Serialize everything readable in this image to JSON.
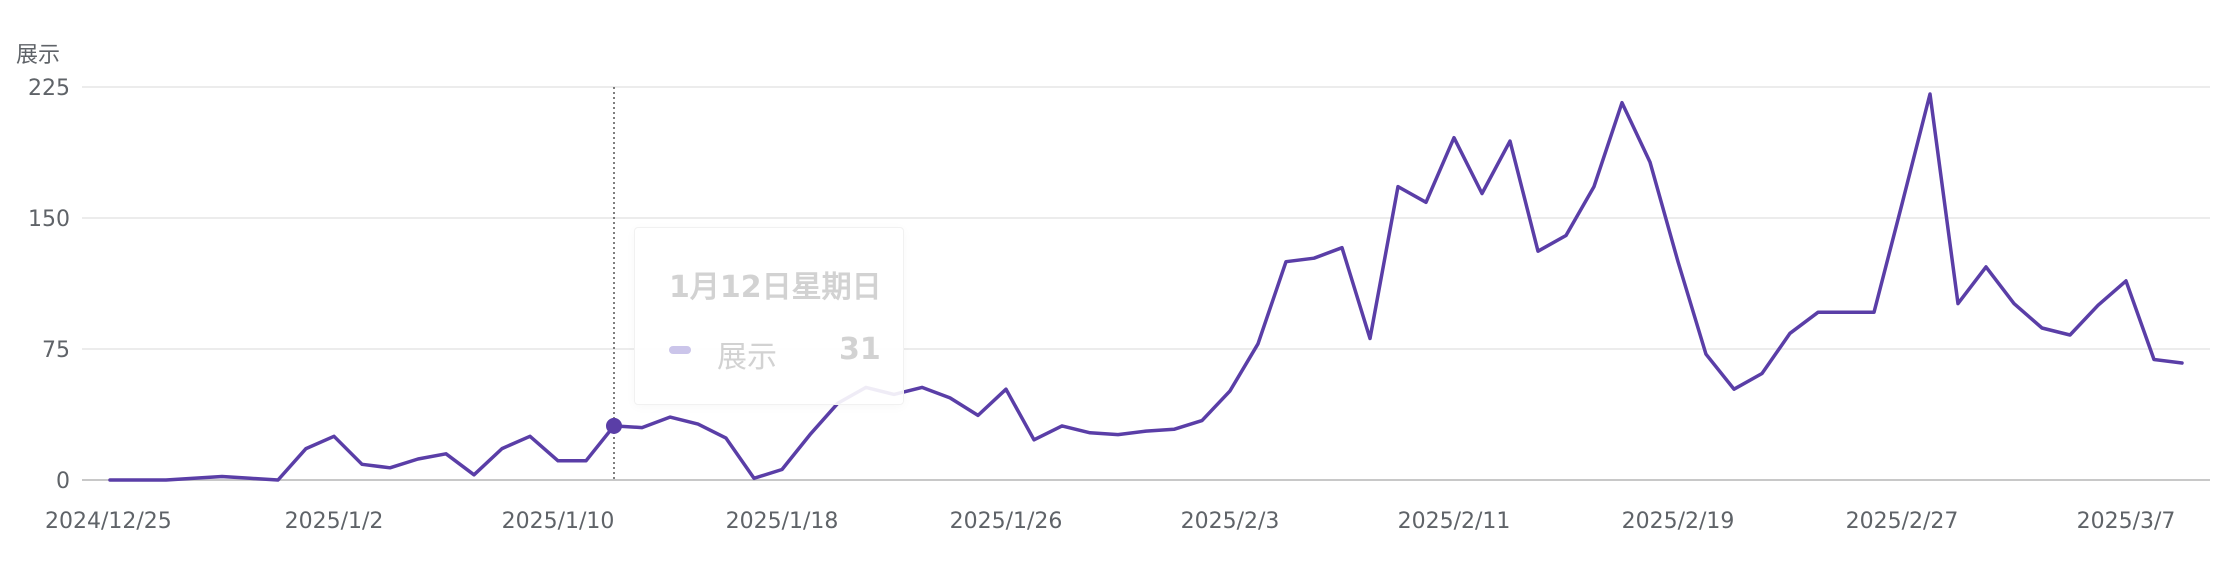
{
  "chart_data": {
    "type": "line",
    "ylabel": "展示",
    "ylim": [
      0,
      225
    ],
    "yticks": [
      0,
      75,
      150,
      225
    ],
    "x_tick_labels": [
      "2024/12/25",
      "2025/1/2",
      "2025/1/10",
      "2025/1/18",
      "2025/1/26",
      "2025/2/3",
      "2025/2/11",
      "2025/2/19",
      "2025/2/27",
      "2025/3/7"
    ],
    "series": [
      {
        "name": "展示",
        "color": "#5a3ea7",
        "start_date": "2024/12/25",
        "values": [
          0,
          0,
          0,
          1,
          2,
          1,
          0,
          18,
          25,
          9,
          7,
          12,
          15,
          3,
          18,
          25,
          11,
          11,
          31,
          30,
          36,
          32,
          24,
          1,
          6,
          26,
          44,
          53,
          49,
          53,
          47,
          37,
          52,
          23,
          31,
          27,
          26,
          28,
          29,
          34,
          51,
          78,
          125,
          127,
          133,
          81,
          168,
          159,
          196,
          164,
          194,
          131,
          140,
          168,
          216,
          182,
          125,
          72,
          52,
          61,
          84,
          96,
          96,
          96,
          158,
          221,
          101,
          122,
          101,
          87,
          83,
          100,
          114,
          69,
          67
        ]
      }
    ],
    "highlight": {
      "date": "1月12日星期日",
      "series": "展示",
      "value": 31,
      "index": 18
    },
    "grid": true
  }
}
